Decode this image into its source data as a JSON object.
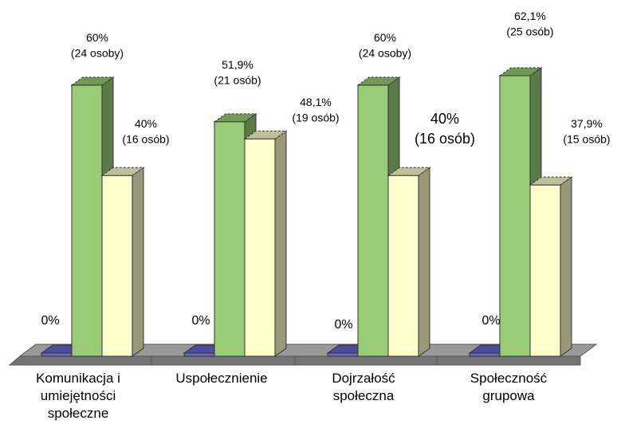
{
  "chart_data": {
    "type": "bar",
    "style": "3d-clustered-column",
    "categories": [
      [
        "Komunikacja i",
        "umiejętności",
        "społeczne"
      ],
      [
        "Uspołecznienie"
      ],
      [
        "Dojrzałość",
        "społeczna"
      ],
      [
        "Społeczność",
        "grupowa"
      ]
    ],
    "series": [
      {
        "color": "#6666cc",
        "values": [
          0,
          0,
          0,
          0
        ],
        "labels": [
          [
            "0%"
          ],
          [
            "0%"
          ],
          [
            "0%"
          ],
          [
            "0%"
          ]
        ]
      },
      {
        "color": "#99cc77",
        "values": [
          60,
          51.9,
          60,
          62.1
        ],
        "labels": [
          [
            "60%",
            "(24 osoby)"
          ],
          [
            "51,9%",
            "(21 osób)"
          ],
          [
            "60%",
            "(24 osoby)"
          ],
          [
            "62,1%",
            "(25 osób)"
          ]
        ]
      },
      {
        "color": "#ffffcc",
        "values": [
          40,
          48.1,
          40,
          37.9
        ],
        "labels": [
          [
            "40%",
            "(16 osób)"
          ],
          [
            "48,1%",
            "(19 osób)"
          ],
          [
            "40%",
            "(16 osób)"
          ],
          [
            "37,9%",
            "(15 osób)"
          ]
        ]
      }
    ],
    "floor_color": "#999999",
    "grid": false,
    "legend": "none",
    "ylim": [
      0,
      62.1
    ]
  }
}
